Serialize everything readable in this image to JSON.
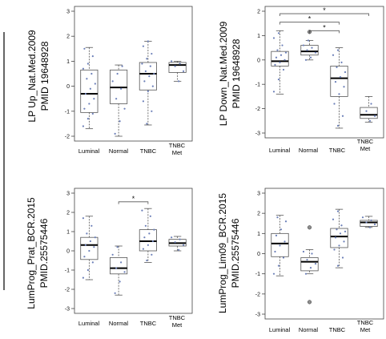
{
  "chart_data": [
    {
      "type": "box",
      "ylabel_lines": [
        "LP Up_Nat.Med.2009",
        "PMID 19648928"
      ],
      "categories": [
        "Luminal",
        "Normal",
        "TNBC",
        "TNBC Met"
      ],
      "ylim": [
        -2,
        3
      ],
      "yticks": [
        -2,
        -1,
        0,
        1,
        2,
        3
      ],
      "boxes": [
        {
          "min": -1.7,
          "q1": -1.05,
          "median": -0.3,
          "q3": 0.65,
          "max": 1.55
        },
        {
          "min": -2.0,
          "q1": -0.7,
          "median": -0.05,
          "q3": 0.65,
          "max": 0.85
        },
        {
          "min": -1.55,
          "q1": -0.15,
          "median": 0.5,
          "q3": 0.95,
          "max": 1.8
        },
        {
          "min": 0.2,
          "q1": 0.55,
          "median": 0.85,
          "q3": 0.95,
          "max": 1.0
        }
      ],
      "points": [
        [
          -1.6,
          -1.3,
          -1.1,
          -0.9,
          -0.7,
          -0.5,
          -0.3,
          -0.1,
          0.1,
          0.3,
          0.5,
          0.7,
          0.9,
          1.2,
          1.5
        ],
        [
          -1.9,
          -1.4,
          -0.9,
          -0.5,
          -0.1,
          0.2,
          0.5,
          0.8
        ],
        [
          -1.5,
          -1.0,
          -0.6,
          -0.2,
          0.0,
          0.2,
          0.4,
          0.5,
          0.6,
          0.8,
          0.9,
          1.1,
          1.3,
          1.6,
          1.8
        ],
        [
          0.2,
          0.6,
          0.8,
          0.9,
          1.0
        ]
      ],
      "outliers": [
        [],
        [],
        [],
        []
      ],
      "significance": []
    },
    {
      "type": "box",
      "ylabel_lines": [
        "LP Down_Nat.Med.2009",
        "PMID 19648928"
      ],
      "categories": [
        "Luminal",
        "Normal",
        "TNBC",
        "TNBC Met"
      ],
      "ylim": [
        -3,
        2
      ],
      "yticks": [
        -3,
        -2,
        -1,
        0,
        1,
        2
      ],
      "boxes": [
        {
          "min": -1.4,
          "q1": -0.25,
          "median": -0.05,
          "q3": 0.35,
          "max": 1.2
        },
        {
          "min": 0.0,
          "q1": 0.2,
          "median": 0.35,
          "q3": 0.6,
          "max": 0.8
        },
        {
          "min": -2.8,
          "q1": -1.5,
          "median": -0.75,
          "q3": -0.25,
          "max": 0.5
        },
        {
          "min": -2.55,
          "q1": -2.4,
          "median": -2.25,
          "q3": -1.95,
          "max": -1.5
        }
      ],
      "points": [
        [
          -1.3,
          -0.8,
          -0.4,
          -0.2,
          -0.1,
          0.0,
          0.1,
          0.2,
          0.3,
          0.4,
          0.6,
          0.9,
          1.1
        ],
        [
          0.0,
          0.1,
          0.3,
          0.4,
          0.5,
          0.6,
          0.8
        ],
        [
          -2.7,
          -2.3,
          -1.8,
          -1.4,
          -1.1,
          -0.9,
          -0.7,
          -0.5,
          -0.3,
          -0.1,
          0.2,
          0.4
        ],
        [
          -2.5,
          -2.3,
          -2.1,
          -1.8
        ]
      ],
      "outliers": [
        [],
        [
          1.15
        ],
        [],
        []
      ],
      "significance": [
        {
          "from": 0,
          "to": 3,
          "y": 1.9,
          "label": "*"
        },
        {
          "from": 0,
          "to": 2,
          "y": 1.55,
          "label": "*"
        },
        {
          "from": 1,
          "to": 2,
          "y": 1.2,
          "label": "*"
        }
      ]
    },
    {
      "type": "box",
      "ylabel_lines": [
        "LumProg_Prat_BCR.2015",
        "PMID.25575446"
      ],
      "categories": [
        "Luminal",
        "Normal",
        "TNBC",
        "TNBC Met"
      ],
      "ylim": [
        -3,
        3
      ],
      "yticks": [
        -3,
        -2,
        -1,
        0,
        1,
        2,
        3
      ],
      "boxes": [
        {
          "min": -1.5,
          "q1": -0.45,
          "median": 0.3,
          "q3": 0.7,
          "max": 1.8
        },
        {
          "min": -2.3,
          "q1": -1.2,
          "median": -0.9,
          "q3": -0.35,
          "max": 0.25
        },
        {
          "min": -0.6,
          "q1": 0.0,
          "median": 0.5,
          "q3": 1.1,
          "max": 2.2
        },
        {
          "min": 0.0,
          "q1": 0.25,
          "median": 0.4,
          "q3": 0.6,
          "max": 0.75
        }
      ],
      "points": [
        [
          -1.4,
          -1.0,
          -0.6,
          -0.3,
          0.0,
          0.2,
          0.3,
          0.5,
          0.7,
          0.9,
          1.3,
          1.7
        ],
        [
          -2.2,
          -1.6,
          -1.1,
          -0.9,
          -0.6,
          -0.2,
          0.2
        ],
        [
          -0.5,
          -0.2,
          0.1,
          0.3,
          0.5,
          0.7,
          0.9,
          1.1,
          1.3,
          1.8,
          2.1
        ],
        [
          0.05,
          0.3,
          0.45,
          0.6,
          0.7
        ]
      ],
      "outliers": [
        [],
        [],
        [],
        []
      ],
      "significance": [
        {
          "from": 1,
          "to": 2,
          "y": 2.55,
          "label": "*"
        }
      ]
    },
    {
      "type": "box",
      "ylabel_lines": [
        "LumProg_Lim09_BCR.2015",
        "PMID.25575446"
      ],
      "categories": [
        "Luminal",
        "Normal",
        "TNBC",
        "TNBC Met"
      ],
      "ylim": [
        -3,
        3
      ],
      "yticks": [
        -3,
        -2,
        -1,
        0,
        1,
        2,
        3
      ],
      "boxes": [
        {
          "min": -1.1,
          "q1": -0.15,
          "median": 0.5,
          "q3": 1.0,
          "max": 1.9
        },
        {
          "min": -1.0,
          "q1": -0.85,
          "median": -0.4,
          "q3": -0.2,
          "max": 0.2
        },
        {
          "min": -0.7,
          "q1": 0.3,
          "median": 0.85,
          "q3": 1.25,
          "max": 2.2
        },
        {
          "min": 1.3,
          "q1": 1.35,
          "median": 1.55,
          "q3": 1.65,
          "max": 1.85
        }
      ],
      "points": [
        [
          -1.0,
          -0.6,
          -0.2,
          0.1,
          0.4,
          0.6,
          0.9,
          1.2,
          1.6,
          1.8
        ],
        [
          -1.0,
          -0.7,
          -0.5,
          -0.3,
          0.0,
          0.1
        ],
        [
          -0.6,
          -0.2,
          0.2,
          0.4,
          0.6,
          0.8,
          1.0,
          1.1,
          1.2,
          1.4,
          1.7,
          2.1
        ],
        [
          1.3,
          1.45,
          1.55,
          1.65,
          1.8
        ]
      ],
      "outliers": [
        [],
        [
          1.3,
          -2.4
        ],
        [],
        []
      ],
      "significance": []
    }
  ],
  "colors": {
    "axis": "#444444",
    "box_stroke": "#555555",
    "box_fill": "#ffffff",
    "point": "#6b7fb8",
    "outlier": "#333333",
    "text": "#111111",
    "divider": "#333333"
  }
}
